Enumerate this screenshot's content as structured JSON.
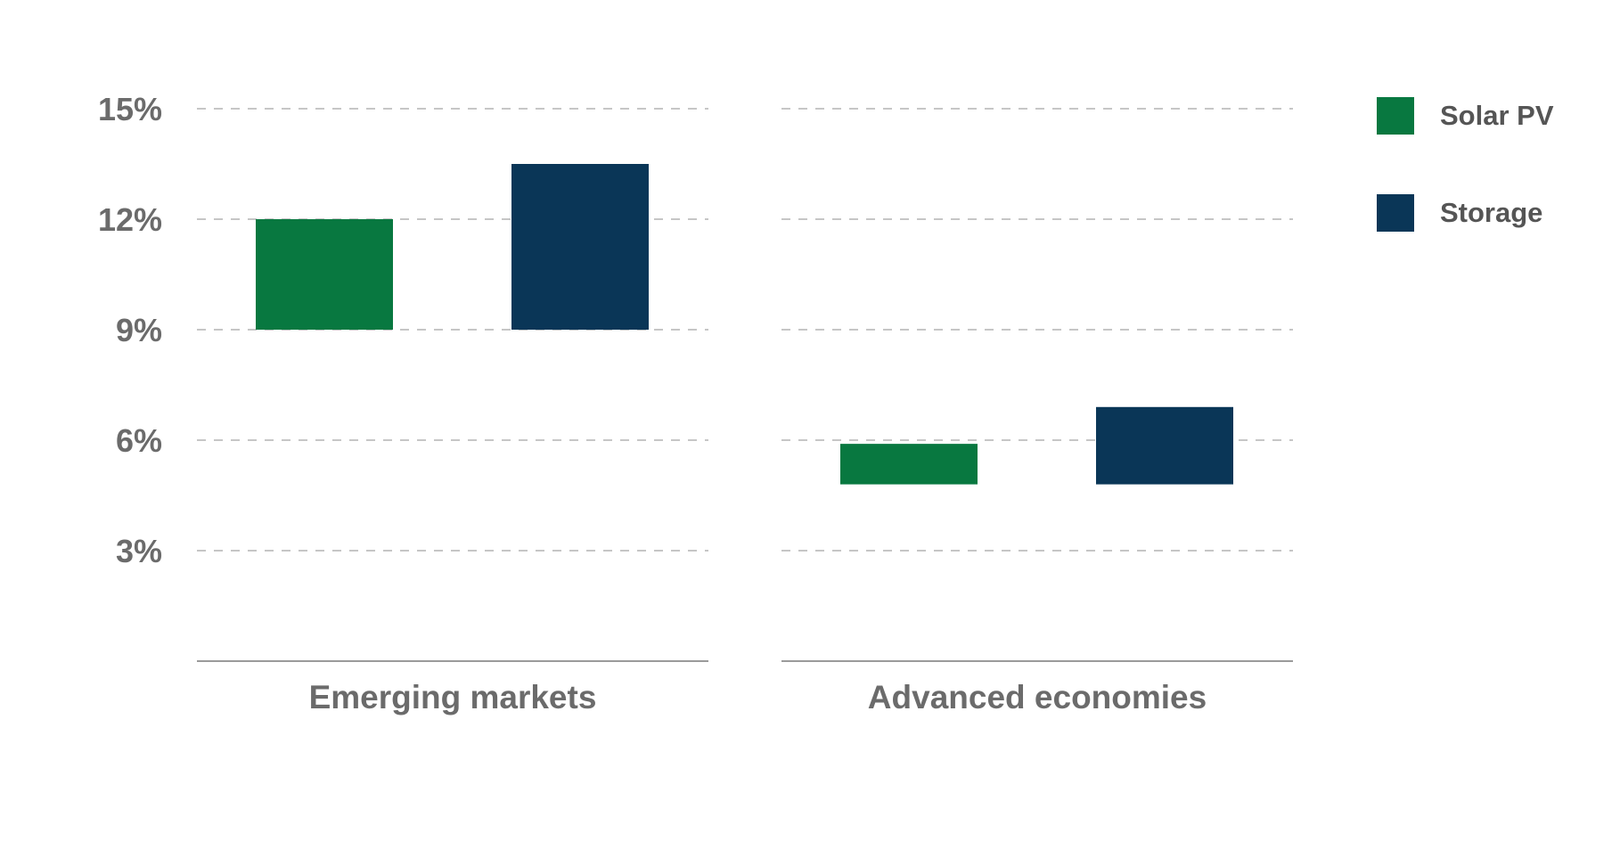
{
  "chart_data": {
    "type": "bar",
    "subtype": "floating-range",
    "categories": [
      "Emerging markets",
      "Advanced economies"
    ],
    "series": [
      {
        "name": "Solar PV",
        "color": "#087840",
        "ranges": [
          [
            9,
            12
          ],
          [
            4.8,
            5.9
          ]
        ]
      },
      {
        "name": "Storage",
        "color": "#0a3657",
        "ranges": [
          [
            9,
            13.5
          ],
          [
            4.8,
            6.9
          ]
        ]
      }
    ],
    "y_ticks": [
      3,
      6,
      9,
      12,
      15
    ],
    "y_tick_labels": [
      "3%",
      "6%",
      "9%",
      "12%",
      "15%"
    ],
    "ylim": [
      0,
      15
    ],
    "grid": true,
    "legend_position": "top-right"
  }
}
